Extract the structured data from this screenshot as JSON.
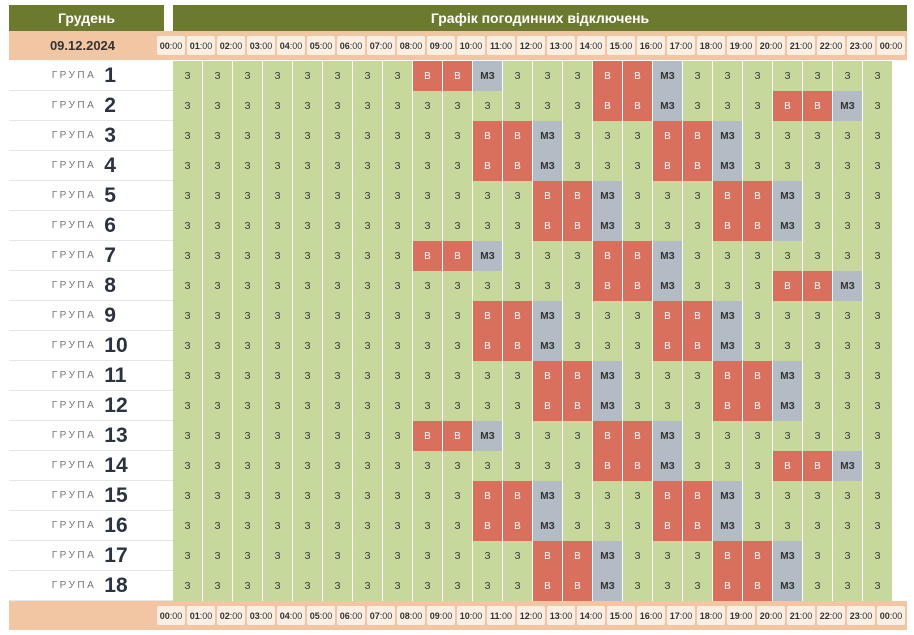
{
  "header": {
    "month": "Грудень",
    "title": "Графік погодинних відключень"
  },
  "date": "09.12.2024",
  "hours": [
    "00",
    "01",
    "02",
    "03",
    "04",
    "05",
    "06",
    "07",
    "08",
    "09",
    "10",
    "11",
    "12",
    "13",
    "14",
    "15",
    "16",
    "17",
    "18",
    "19",
    "20",
    "21",
    "22",
    "23",
    "00"
  ],
  "minutes": ":00",
  "group_word": "ГРУПА",
  "legend_codes": {
    "on": "З",
    "off": "В",
    "maybe": "МЗ"
  },
  "groups": [
    {
      "num": "1",
      "cells": [
        "З",
        "З",
        "З",
        "З",
        "З",
        "З",
        "З",
        "З",
        "В",
        "В",
        "МЗ",
        "З",
        "З",
        "З",
        "В",
        "В",
        "МЗ",
        "З",
        "З",
        "З",
        "З",
        "З",
        "З",
        "З"
      ]
    },
    {
      "num": "2",
      "cells": [
        "З",
        "З",
        "З",
        "З",
        "З",
        "З",
        "З",
        "З",
        "З",
        "З",
        "З",
        "З",
        "З",
        "З",
        "В",
        "В",
        "МЗ",
        "З",
        "З",
        "З",
        "В",
        "В",
        "МЗ",
        "З"
      ]
    },
    {
      "num": "3",
      "cells": [
        "З",
        "З",
        "З",
        "З",
        "З",
        "З",
        "З",
        "З",
        "З",
        "З",
        "В",
        "В",
        "МЗ",
        "З",
        "З",
        "З",
        "В",
        "В",
        "МЗ",
        "З",
        "З",
        "З",
        "З",
        "З"
      ]
    },
    {
      "num": "4",
      "cells": [
        "З",
        "З",
        "З",
        "З",
        "З",
        "З",
        "З",
        "З",
        "З",
        "З",
        "В",
        "В",
        "МЗ",
        "З",
        "З",
        "З",
        "В",
        "В",
        "МЗ",
        "З",
        "З",
        "З",
        "З",
        "З"
      ]
    },
    {
      "num": "5",
      "cells": [
        "З",
        "З",
        "З",
        "З",
        "З",
        "З",
        "З",
        "З",
        "З",
        "З",
        "З",
        "З",
        "В",
        "В",
        "МЗ",
        "З",
        "З",
        "З",
        "В",
        "В",
        "МЗ",
        "З",
        "З",
        "З"
      ]
    },
    {
      "num": "6",
      "cells": [
        "З",
        "З",
        "З",
        "З",
        "З",
        "З",
        "З",
        "З",
        "З",
        "З",
        "З",
        "З",
        "В",
        "В",
        "МЗ",
        "З",
        "З",
        "З",
        "В",
        "В",
        "МЗ",
        "З",
        "З",
        "З"
      ]
    },
    {
      "num": "7",
      "cells": [
        "З",
        "З",
        "З",
        "З",
        "З",
        "З",
        "З",
        "З",
        "В",
        "В",
        "МЗ",
        "З",
        "З",
        "З",
        "В",
        "В",
        "МЗ",
        "З",
        "З",
        "З",
        "З",
        "З",
        "З",
        "З"
      ]
    },
    {
      "num": "8",
      "cells": [
        "З",
        "З",
        "З",
        "З",
        "З",
        "З",
        "З",
        "З",
        "З",
        "З",
        "З",
        "З",
        "З",
        "З",
        "В",
        "В",
        "МЗ",
        "З",
        "З",
        "З",
        "В",
        "В",
        "МЗ",
        "З"
      ]
    },
    {
      "num": "9",
      "cells": [
        "З",
        "З",
        "З",
        "З",
        "З",
        "З",
        "З",
        "З",
        "З",
        "З",
        "В",
        "В",
        "МЗ",
        "З",
        "З",
        "З",
        "В",
        "В",
        "МЗ",
        "З",
        "З",
        "З",
        "З",
        "З"
      ]
    },
    {
      "num": "10",
      "cells": [
        "З",
        "З",
        "З",
        "З",
        "З",
        "З",
        "З",
        "З",
        "З",
        "З",
        "В",
        "В",
        "МЗ",
        "З",
        "З",
        "З",
        "В",
        "В",
        "МЗ",
        "З",
        "З",
        "З",
        "З",
        "З"
      ]
    },
    {
      "num": "11",
      "cells": [
        "З",
        "З",
        "З",
        "З",
        "З",
        "З",
        "З",
        "З",
        "З",
        "З",
        "З",
        "З",
        "В",
        "В",
        "МЗ",
        "З",
        "З",
        "З",
        "В",
        "В",
        "МЗ",
        "З",
        "З",
        "З"
      ]
    },
    {
      "num": "12",
      "cells": [
        "З",
        "З",
        "З",
        "З",
        "З",
        "З",
        "З",
        "З",
        "З",
        "З",
        "З",
        "З",
        "В",
        "В",
        "МЗ",
        "З",
        "З",
        "З",
        "В",
        "В",
        "МЗ",
        "З",
        "З",
        "З"
      ]
    },
    {
      "num": "13",
      "cells": [
        "З",
        "З",
        "З",
        "З",
        "З",
        "З",
        "З",
        "З",
        "В",
        "В",
        "МЗ",
        "З",
        "З",
        "З",
        "В",
        "В",
        "МЗ",
        "З",
        "З",
        "З",
        "З",
        "З",
        "З",
        "З"
      ]
    },
    {
      "num": "14",
      "cells": [
        "З",
        "З",
        "З",
        "З",
        "З",
        "З",
        "З",
        "З",
        "З",
        "З",
        "З",
        "З",
        "З",
        "З",
        "В",
        "В",
        "МЗ",
        "З",
        "З",
        "З",
        "В",
        "В",
        "МЗ",
        "З"
      ]
    },
    {
      "num": "15",
      "cells": [
        "З",
        "З",
        "З",
        "З",
        "З",
        "З",
        "З",
        "З",
        "З",
        "З",
        "В",
        "В",
        "МЗ",
        "З",
        "З",
        "З",
        "В",
        "В",
        "МЗ",
        "З",
        "З",
        "З",
        "З",
        "З"
      ]
    },
    {
      "num": "16",
      "cells": [
        "З",
        "З",
        "З",
        "З",
        "З",
        "З",
        "З",
        "З",
        "З",
        "З",
        "В",
        "В",
        "МЗ",
        "З",
        "З",
        "З",
        "В",
        "В",
        "МЗ",
        "З",
        "З",
        "З",
        "З",
        "З"
      ]
    },
    {
      "num": "17",
      "cells": [
        "З",
        "З",
        "З",
        "З",
        "З",
        "З",
        "З",
        "З",
        "З",
        "З",
        "З",
        "З",
        "В",
        "В",
        "МЗ",
        "З",
        "З",
        "З",
        "В",
        "В",
        "МЗ",
        "З",
        "З",
        "З"
      ]
    },
    {
      "num": "18",
      "cells": [
        "З",
        "З",
        "З",
        "З",
        "З",
        "З",
        "З",
        "З",
        "З",
        "З",
        "З",
        "З",
        "В",
        "В",
        "МЗ",
        "З",
        "З",
        "З",
        "В",
        "В",
        "МЗ",
        "З",
        "З",
        "З"
      ]
    }
  ],
  "colors": {
    "header_bg": "#6b7a2e",
    "timebar_bg": "#f2c6a3",
    "power_on": "#c7d89d",
    "power_off": "#d9705e",
    "maybe_off": "#b3bcc4"
  }
}
